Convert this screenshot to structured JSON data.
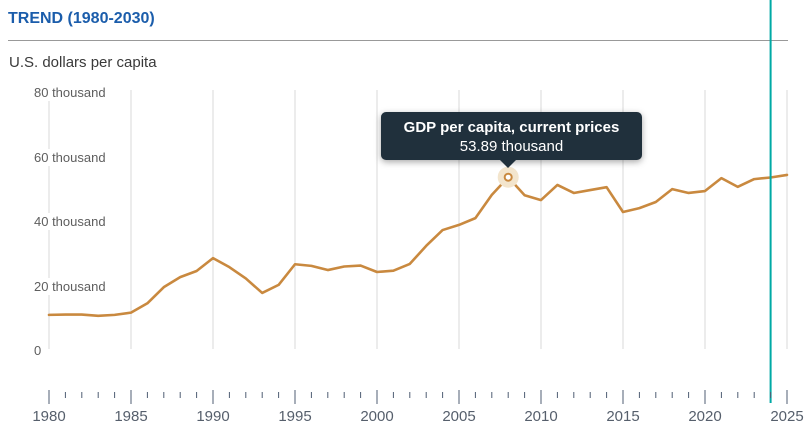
{
  "header": {
    "title": "TREND (1980-2030)"
  },
  "chart": {
    "unit_label": "U.S. dollars per capita"
  },
  "tooltip": {
    "title": "GDP per capita, current prices",
    "value": "53.89 thousand"
  },
  "colors": {
    "title_blue": "#1b5dab",
    "series_orange": "#c9893f",
    "marker_halo": "#f3e5cd",
    "forecast_line_teal": "#00a9a5",
    "gridline": "#d9d9d9",
    "tick": "#4f5d73",
    "tooltip_bg": "#20303c"
  },
  "chart_data": {
    "type": "line",
    "title": "TREND (1980-2030)",
    "ylabel": "U.S. dollars per capita",
    "unit": "thousand U.S. dollars",
    "ylim": [
      0,
      80
    ],
    "xlim_visible": [
      1980,
      2025
    ],
    "grid": "vertical-only",
    "legend_position": "none",
    "y_ticks": [
      {
        "value": 0,
        "label": "0"
      },
      {
        "value": 20,
        "label": "20 thousand"
      },
      {
        "value": 40,
        "label": "40 thousand"
      },
      {
        "value": 60,
        "label": "60 thousand"
      },
      {
        "value": 80,
        "label": "80 thousand"
      }
    ],
    "x_major_ticks": [
      1980,
      1985,
      1990,
      1995,
      2000,
      2005,
      2010,
      2015,
      2020,
      2025
    ],
    "x_minor_tick_interval": 1,
    "series": [
      {
        "name": "GDP per capita, current prices",
        "x": [
          1980,
          1981,
          1982,
          1983,
          1984,
          1985,
          1986,
          1987,
          1988,
          1989,
          1990,
          1991,
          1992,
          1993,
          1994,
          1995,
          1996,
          1997,
          1998,
          1999,
          2000,
          2001,
          2002,
          2003,
          2004,
          2005,
          2006,
          2007,
          2008,
          2009,
          2010,
          2011,
          2012,
          2013,
          2014,
          2015,
          2016,
          2017,
          2018,
          2019,
          2020,
          2021,
          2022,
          2023,
          2024,
          2025
        ],
        "values": [
          11.2,
          11.3,
          11.3,
          10.9,
          11.2,
          11.9,
          14.8,
          19.8,
          22.9,
          24.8,
          28.8,
          26.0,
          22.5,
          18.0,
          20.5,
          26.9,
          26.4,
          25.1,
          26.2,
          26.5,
          24.5,
          24.9,
          27.0,
          32.6,
          37.5,
          39.1,
          41.2,
          48.4,
          53.89,
          48.3,
          46.8,
          51.5,
          49.0,
          49.9,
          50.8,
          43.1,
          44.3,
          46.2,
          50.2,
          49.0,
          49.6,
          53.6,
          50.9,
          53.3,
          53.8,
          54.6
        ]
      }
    ],
    "highlight_point": {
      "x": 2008,
      "value": 53.89
    },
    "vertical_marker_year": 2024
  }
}
